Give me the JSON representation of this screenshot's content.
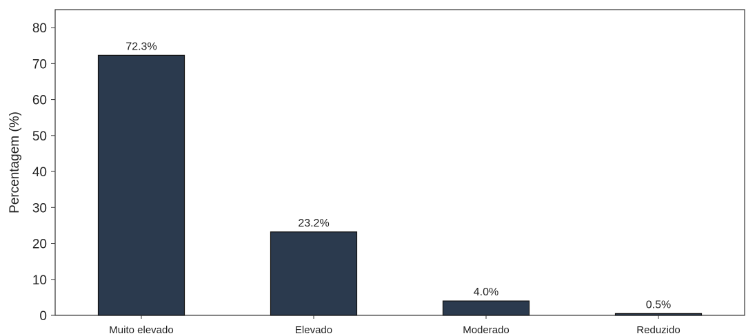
{
  "chart_data": {
    "type": "bar",
    "title": "",
    "xlabel": "",
    "ylabel": "Percentagem (%)",
    "categories": [
      "Muito elevado",
      "Elevado",
      "Moderado",
      "Reduzido"
    ],
    "values": [
      72.3,
      23.2,
      4.0,
      0.5
    ],
    "data_labels": [
      "72.3%",
      "23.2%",
      "4.0%",
      "0.5%"
    ],
    "ylim": [
      0,
      85
    ],
    "yticks": [
      0,
      10,
      20,
      30,
      40,
      50,
      60,
      70,
      80
    ],
    "grid": false,
    "bar_color": "#2b3a4e",
    "bar_edge_color": "#111111"
  }
}
